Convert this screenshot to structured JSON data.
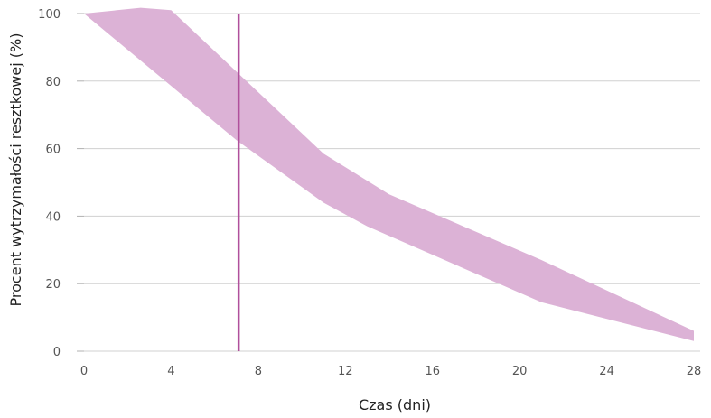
{
  "chart_data": {
    "type": "area",
    "xlabel": "Czas (dni)",
    "ylabel": "Procent wytrzymałości resztkowej (%)",
    "xlim": [
      0,
      28
    ],
    "ylim": [
      0,
      100
    ],
    "x_ticks": [
      "0",
      "4",
      "8",
      "12",
      "16",
      "20",
      "24",
      "28"
    ],
    "y_ticks": [
      "0",
      "20",
      "40",
      "60",
      "80",
      "100"
    ],
    "grid": "horizontal",
    "series": [
      {
        "upper": [
          {
            "x": 0,
            "y": 100
          },
          {
            "x": 2.6,
            "y": 101.7
          },
          {
            "x": 4,
            "y": 101
          },
          {
            "x": 11,
            "y": 58.5
          },
          {
            "x": 14,
            "y": 46.5
          },
          {
            "x": 21,
            "y": 27
          },
          {
            "x": 28,
            "y": 6
          }
        ],
        "lower": [
          {
            "x": 0,
            "y": 100
          },
          {
            "x": 7,
            "y": 62.5
          },
          {
            "x": 11,
            "y": 44
          },
          {
            "x": 13,
            "y": 37
          },
          {
            "x": 21,
            "y": 14.5
          },
          {
            "x": 28,
            "y": 3
          }
        ],
        "color": "#dcb2d6"
      }
    ],
    "vline": {
      "x": 7.1,
      "color": "#b0509c"
    },
    "colors": {
      "grid": "#d0d0d0",
      "axis": "#b0b0b0",
      "tick_text": "#555555",
      "title_text": "#222222"
    }
  }
}
